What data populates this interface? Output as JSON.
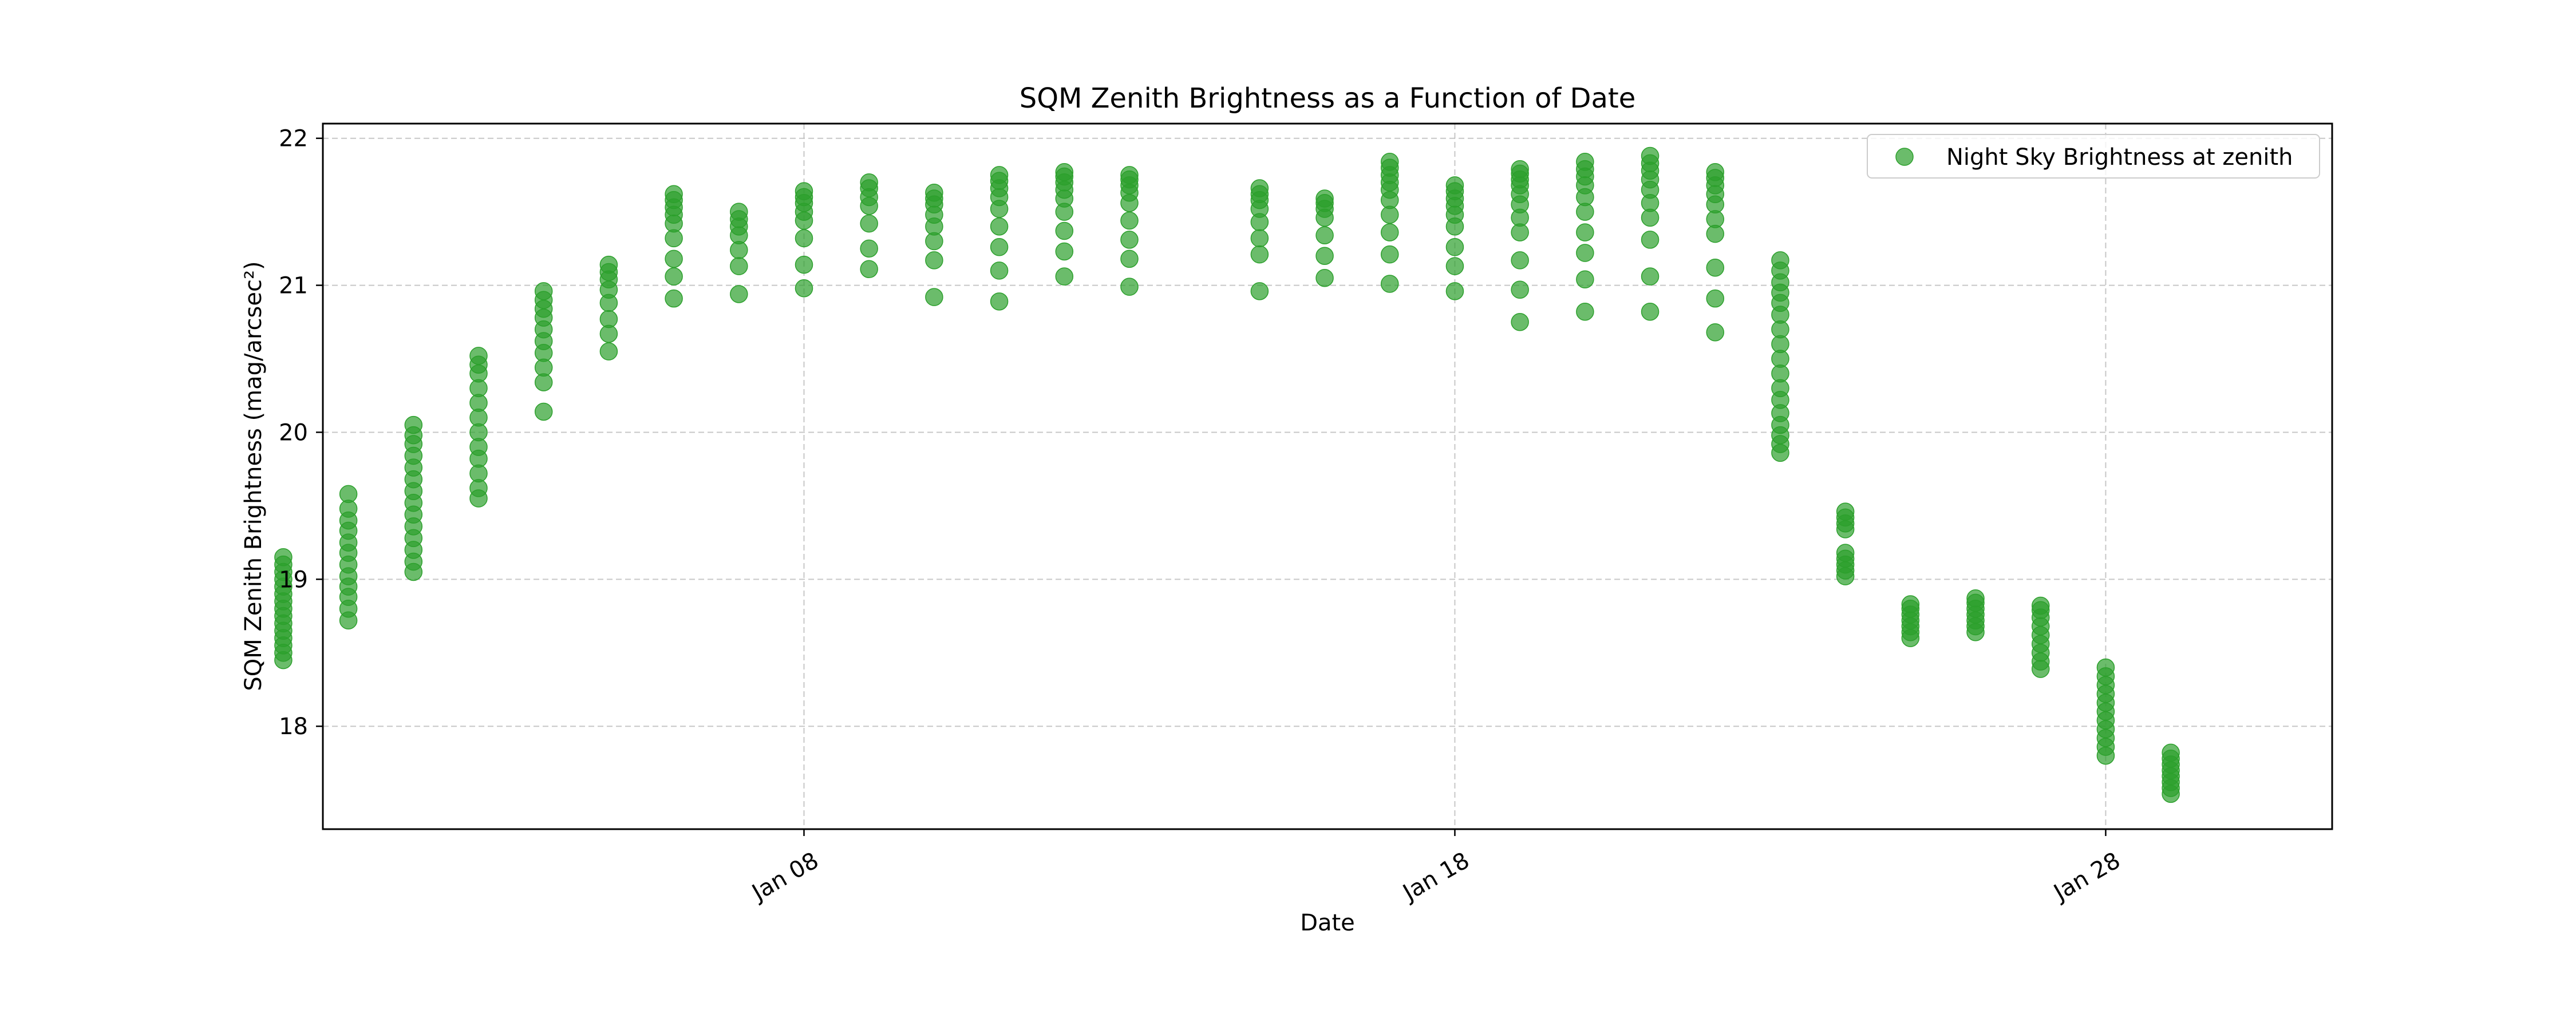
{
  "chart_data": {
    "type": "scatter",
    "title": "SQM Zenith Brightness as a Function of Date",
    "xlabel": "Date",
    "ylabel": "SQM Zenith Brightness (mag/arcsec²)",
    "xlim": [
      "2025-01-00T14:35",
      "2025-01-31T11:30"
    ],
    "ylim": [
      17.3,
      22.1
    ],
    "x_ticks": [
      {
        "date": "2025-01-08",
        "label": "Jan 08"
      },
      {
        "date": "2025-01-18",
        "label": "Jan 18"
      },
      {
        "date": "2025-01-28",
        "label": "Jan 28"
      }
    ],
    "y_ticks": [
      {
        "value": 18,
        "label": "18"
      },
      {
        "value": 19,
        "label": "19"
      },
      {
        "value": 20,
        "label": "20"
      },
      {
        "value": 21,
        "label": "21"
      },
      {
        "value": 22,
        "label": "22"
      }
    ],
    "grid": true,
    "legend_position": "top-right",
    "colors": {
      "marker": "#2ca02c"
    },
    "series": [
      {
        "name": "Night Sky Brightness at zenith",
        "points": [
          {
            "date": "2025-01-00",
            "values": [
              18.45,
              18.5,
              18.55,
              18.6,
              18.65,
              18.7,
              18.75,
              18.8,
              18.85,
              18.9,
              18.95,
              19.0,
              19.05,
              19.1,
              19.15
            ]
          },
          {
            "date": "2025-01-01",
            "values": [
              18.72,
              18.8,
              18.88,
              18.95,
              19.02,
              19.1,
              19.18,
              19.25,
              19.33,
              19.4,
              19.48,
              19.58
            ]
          },
          {
            "date": "2025-01-02",
            "values": [
              19.05,
              19.12,
              19.2,
              19.28,
              19.36,
              19.44,
              19.52,
              19.6,
              19.68,
              19.76,
              19.84,
              19.92,
              19.98,
              20.05
            ]
          },
          {
            "date": "2025-01-03",
            "values": [
              19.55,
              19.62,
              19.72,
              19.82,
              19.9,
              20.0,
              20.1,
              20.2,
              20.3,
              20.4,
              20.46,
              20.52
            ]
          },
          {
            "date": "2025-01-04",
            "values": [
              20.14,
              20.34,
              20.44,
              20.54,
              20.62,
              20.7,
              20.78,
              20.84,
              20.9,
              20.96
            ]
          },
          {
            "date": "2025-01-05",
            "values": [
              20.55,
              20.67,
              20.77,
              20.88,
              20.97,
              21.04,
              21.09,
              21.14
            ]
          },
          {
            "date": "2025-01-06",
            "values": [
              20.91,
              21.06,
              21.18,
              21.32,
              21.42,
              21.48,
              21.53,
              21.58,
              21.62
            ]
          },
          {
            "date": "2025-01-07",
            "values": [
              20.94,
              21.13,
              21.24,
              21.34,
              21.4,
              21.45,
              21.5
            ]
          },
          {
            "date": "2025-01-08",
            "values": [
              20.98,
              21.14,
              21.32,
              21.44,
              21.5,
              21.56,
              21.6,
              21.64
            ]
          },
          {
            "date": "2025-01-09",
            "values": [
              21.11,
              21.25,
              21.42,
              21.54,
              21.6,
              21.66,
              21.7
            ]
          },
          {
            "date": "2025-01-10",
            "values": [
              20.92,
              21.17,
              21.3,
              21.4,
              21.48,
              21.55,
              21.59,
              21.63
            ]
          },
          {
            "date": "2025-01-11",
            "values": [
              20.89,
              21.1,
              21.26,
              21.4,
              21.52,
              21.6,
              21.66,
              21.71,
              21.75
            ]
          },
          {
            "date": "2025-01-12",
            "values": [
              21.06,
              21.23,
              21.37,
              21.5,
              21.59,
              21.65,
              21.7,
              21.74,
              21.77
            ]
          },
          {
            "date": "2025-01-13",
            "values": [
              20.99,
              21.18,
              21.31,
              21.44,
              21.56,
              21.63,
              21.68,
              21.72,
              21.75
            ]
          },
          {
            "date": "2025-01-15",
            "values": [
              20.96,
              21.21,
              21.32,
              21.43,
              21.52,
              21.58,
              21.62,
              21.66
            ]
          },
          {
            "date": "2025-01-16",
            "values": [
              21.05,
              21.2,
              21.34,
              21.46,
              21.52,
              21.56,
              21.59
            ]
          },
          {
            "date": "2025-01-17",
            "values": [
              21.01,
              21.21,
              21.36,
              21.48,
              21.58,
              21.65,
              21.7,
              21.75,
              21.8,
              21.84
            ]
          },
          {
            "date": "2025-01-18",
            "values": [
              20.96,
              21.13,
              21.26,
              21.4,
              21.48,
              21.54,
              21.59,
              21.64,
              21.68
            ]
          },
          {
            "date": "2025-01-19",
            "values": [
              20.75,
              20.97,
              21.17,
              21.36,
              21.46,
              21.55,
              21.62,
              21.68,
              21.72,
              21.76,
              21.79
            ]
          },
          {
            "date": "2025-01-20",
            "values": [
              20.82,
              21.04,
              21.22,
              21.36,
              21.5,
              21.6,
              21.68,
              21.74,
              21.79,
              21.84
            ]
          },
          {
            "date": "2025-01-21",
            "values": [
              20.82,
              21.06,
              21.31,
              21.46,
              21.56,
              21.65,
              21.72,
              21.78,
              21.83,
              21.88
            ]
          },
          {
            "date": "2025-01-22",
            "values": [
              20.68,
              20.91,
              21.12,
              21.35,
              21.45,
              21.55,
              21.62,
              21.68,
              21.73,
              21.77
            ]
          },
          {
            "date": "2025-01-23",
            "values": [
              19.86,
              19.92,
              19.98,
              20.05,
              20.13,
              20.22,
              20.3,
              20.4,
              20.5,
              20.6,
              20.7,
              20.8,
              20.88,
              20.95,
              21.02,
              21.1,
              21.17
            ]
          },
          {
            "date": "2025-01-24",
            "values": [
              19.02,
              19.06,
              19.1,
              19.14,
              19.18,
              19.34,
              19.38,
              19.42,
              19.46
            ]
          },
          {
            "date": "2025-01-25",
            "values": [
              18.6,
              18.64,
              18.68,
              18.72,
              18.76,
              18.8,
              18.83
            ]
          },
          {
            "date": "2025-01-26",
            "values": [
              18.64,
              18.68,
              18.72,
              18.76,
              18.8,
              18.84,
              18.87
            ]
          },
          {
            "date": "2025-01-27",
            "values": [
              18.39,
              18.44,
              18.5,
              18.56,
              18.62,
              18.68,
              18.74,
              18.79,
              18.82
            ]
          },
          {
            "date": "2025-01-28",
            "values": [
              17.8,
              17.86,
              17.92,
              17.98,
              18.04,
              18.1,
              18.16,
              18.22,
              18.28,
              18.34,
              18.4
            ]
          },
          {
            "date": "2025-01-29",
            "values": [
              17.54,
              17.58,
              17.62,
              17.66,
              17.7,
              17.74,
              17.78,
              17.82
            ]
          }
        ]
      }
    ]
  }
}
